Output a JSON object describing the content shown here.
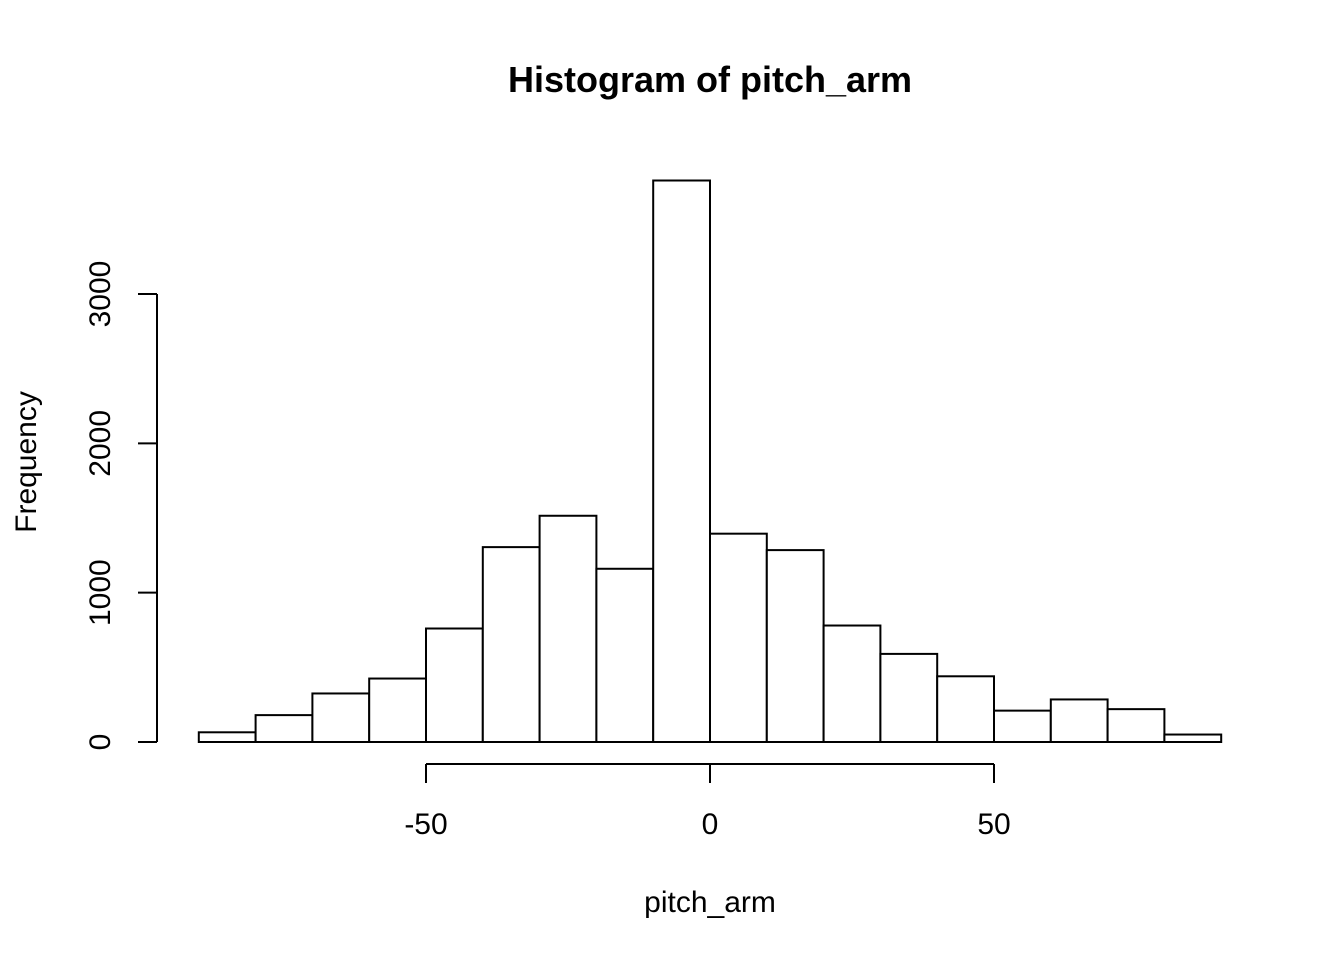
{
  "chart_data": {
    "type": "bar",
    "title": "Histogram of pitch_arm",
    "xlabel": "pitch_arm",
    "ylabel": "Frequency",
    "bin_edges": [
      -90,
      -80,
      -70,
      -60,
      -50,
      -40,
      -30,
      -20,
      -10,
      0,
      10,
      20,
      30,
      40,
      50,
      60,
      70,
      80,
      90
    ],
    "values": [
      65,
      180,
      325,
      425,
      760,
      1305,
      1515,
      1160,
      3760,
      1395,
      1285,
      780,
      590,
      440,
      210,
      285,
      220,
      50
    ],
    "xlim": [
      -90,
      90
    ],
    "ylim": [
      0,
      3760
    ],
    "x_ticks": [
      -50,
      0,
      50
    ],
    "x_tick_labels": [
      "-50",
      "0",
      "50"
    ],
    "y_ticks": [
      0,
      1000,
      2000,
      3000
    ],
    "y_tick_labels": [
      "0",
      "1000",
      "2000",
      "3000"
    ],
    "grid": false,
    "bar_fill": "#ffffff",
    "bar_stroke": "#000000"
  }
}
